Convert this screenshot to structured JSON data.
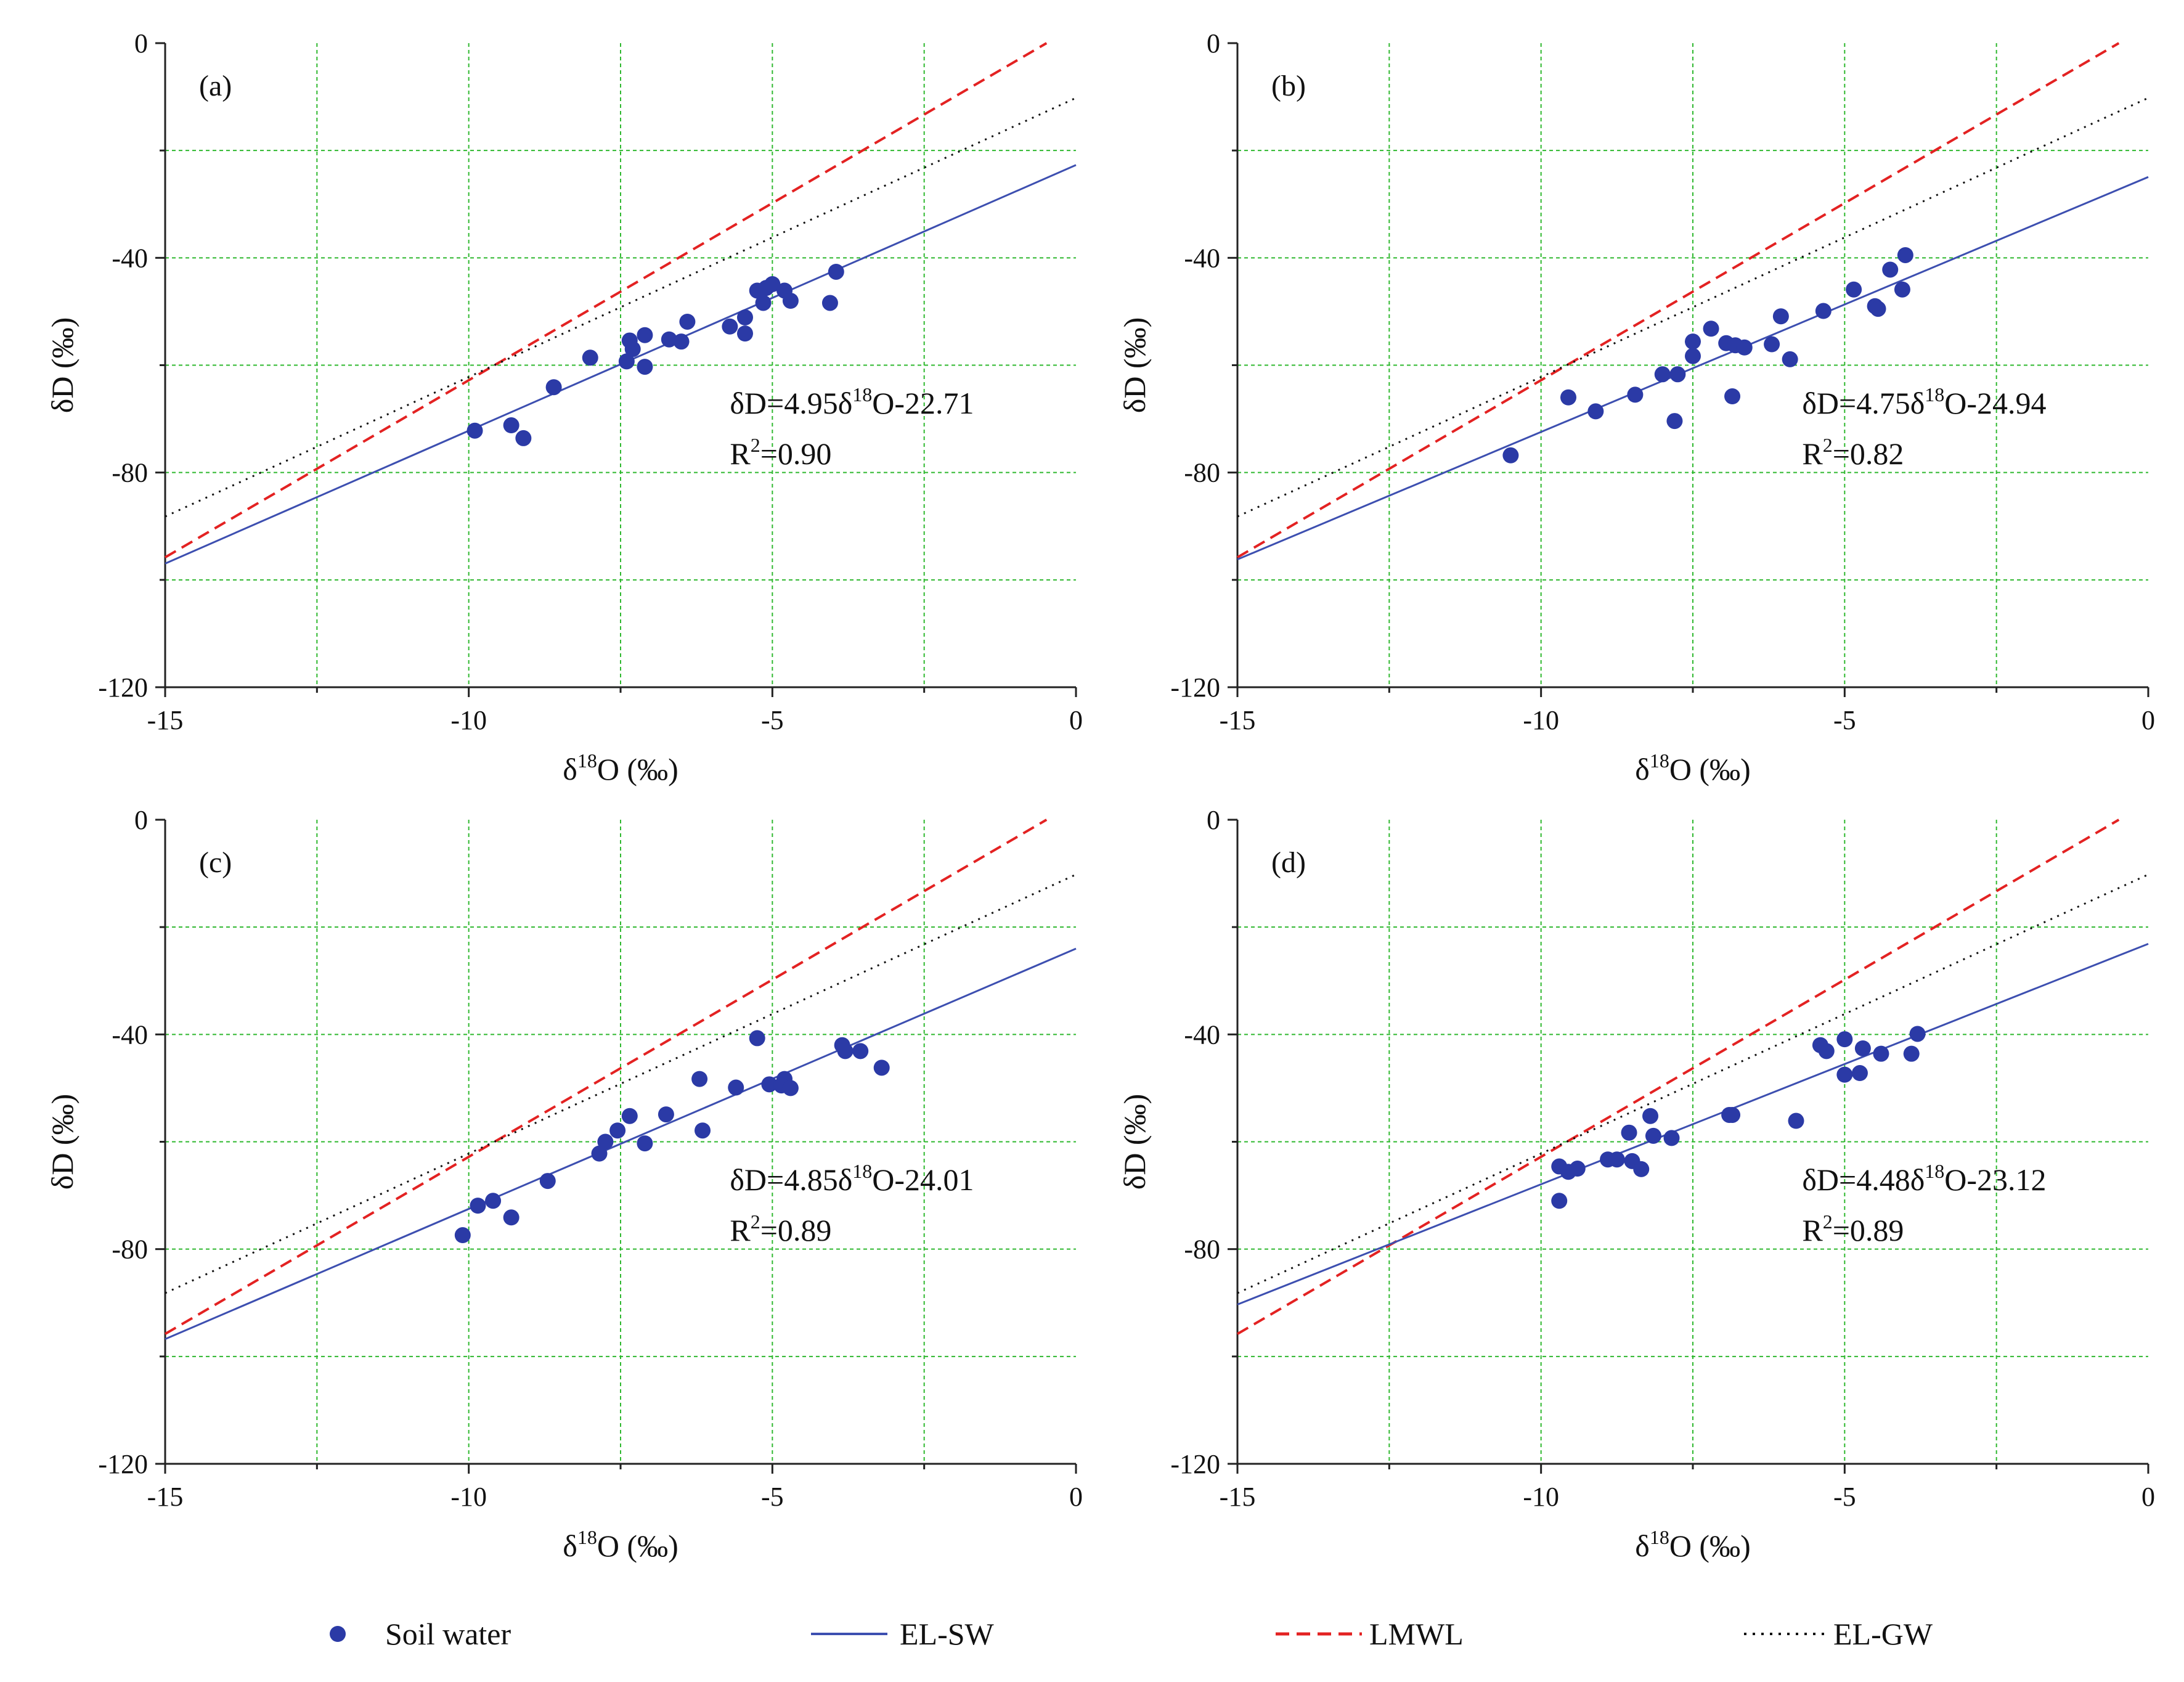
{
  "colors": {
    "points": "#2b3aa6",
    "el_sw": "#3d4fb0",
    "lmwl": "#e32222",
    "el_gw": "#111111",
    "grid": "#2fb82f",
    "axis": "#222222"
  },
  "legend": {
    "soil_water": "Soil water",
    "el_sw": "EL-SW",
    "lmwl": "LMWL",
    "el_gw": "EL-GW"
  },
  "chart_data": [
    {
      "type": "scatter",
      "panel": "(a)",
      "xlabel_main": "δ",
      "xlabel_sup": "18",
      "xlabel_rest": "O (‰)",
      "ylabel": "δD (‰)",
      "xlim": [
        -15,
        0
      ],
      "ylim": [
        -120,
        0
      ],
      "xticks": [
        "-15",
        "-10",
        "-5",
        "0"
      ],
      "yticks": [
        "0",
        "-40",
        "-80",
        "-120"
      ],
      "grid": true,
      "eq_line1_a": "δD=4.95δ",
      "eq_line1_sup": "18",
      "eq_line1_b": "O-22.71",
      "eq_line2_a": "R",
      "eq_line2_sup": "2",
      "eq_line2_b": "=0.90",
      "lines": {
        "el_sw": {
          "slope": 4.95,
          "intercept": -22.71
        },
        "lmwl": {
          "slope": 6.6,
          "intercept": 3.2
        },
        "el_gw": {
          "slope": 5.2,
          "intercept": -10.2
        }
      },
      "points": [
        [
          -9.9,
          -72.2
        ],
        [
          -9.3,
          -71.2
        ],
        [
          -9.1,
          -73.6
        ],
        [
          -8.6,
          -64.1
        ],
        [
          -8.0,
          -58.6
        ],
        [
          -7.4,
          -59.3
        ],
        [
          -7.1,
          -60.3
        ],
        [
          -7.3,
          -57.0
        ],
        [
          -7.35,
          -55.4
        ],
        [
          -7.1,
          -54.4
        ],
        [
          -6.7,
          -55.2
        ],
        [
          -6.5,
          -55.6
        ],
        [
          -6.4,
          -51.9
        ],
        [
          -5.7,
          -52.8
        ],
        [
          -5.45,
          -54.1
        ],
        [
          -5.45,
          -51.1
        ],
        [
          -5.25,
          -46.1
        ],
        [
          -5.1,
          -45.6
        ],
        [
          -5.15,
          -48.4
        ],
        [
          -5.0,
          -44.9
        ],
        [
          -4.8,
          -46.1
        ],
        [
          -4.7,
          -48.0
        ],
        [
          -4.05,
          -48.4
        ],
        [
          -3.95,
          -42.6
        ]
      ]
    },
    {
      "type": "scatter",
      "panel": "(b)",
      "xlabel_main": "δ",
      "xlabel_sup": "18",
      "xlabel_rest": "O (‰)",
      "ylabel": "δD (‰)",
      "xlim": [
        -15,
        0
      ],
      "ylim": [
        -120,
        0
      ],
      "xticks": [
        "-15",
        "-10",
        "-5",
        "0"
      ],
      "yticks": [
        "0",
        "-40",
        "-80",
        "-120"
      ],
      "grid": true,
      "eq_line1_a": "δD=4.75δ",
      "eq_line1_sup": "18",
      "eq_line1_b": "O-24.94",
      "eq_line2_a": "R",
      "eq_line2_sup": "2",
      "eq_line2_b": "=0.82",
      "lines": {
        "el_sw": {
          "slope": 4.75,
          "intercept": -24.94
        },
        "lmwl": {
          "slope": 6.6,
          "intercept": 3.2
        },
        "el_gw": {
          "slope": 5.2,
          "intercept": -10.2
        }
      },
      "points": [
        [
          -10.5,
          -76.8
        ],
        [
          -9.55,
          -66.0
        ],
        [
          -9.1,
          -68.6
        ],
        [
          -8.45,
          -65.5
        ],
        [
          -8.0,
          -61.7
        ],
        [
          -7.75,
          -61.7
        ],
        [
          -7.8,
          -70.4
        ],
        [
          -7.5,
          -58.3
        ],
        [
          -7.5,
          -55.6
        ],
        [
          -7.2,
          -53.2
        ],
        [
          -6.95,
          -55.9
        ],
        [
          -6.85,
          -65.8
        ],
        [
          -6.8,
          -56.3
        ],
        [
          -6.65,
          -56.7
        ],
        [
          -6.2,
          -56.1
        ],
        [
          -6.05,
          -50.9
        ],
        [
          -5.9,
          -58.9
        ],
        [
          -5.35,
          -49.9
        ],
        [
          -4.85,
          -45.9
        ],
        [
          -4.5,
          -49.0
        ],
        [
          -4.45,
          -49.5
        ],
        [
          -4.25,
          -42.2
        ],
        [
          -4.05,
          -45.9
        ],
        [
          -4.0,
          -39.5
        ]
      ]
    },
    {
      "type": "scatter",
      "panel": "(c)",
      "xlabel_main": "δ",
      "xlabel_sup": "18",
      "xlabel_rest": "O (‰)",
      "ylabel": "δD (‰)",
      "xlim": [
        -15,
        0
      ],
      "ylim": [
        -120,
        0
      ],
      "xticks": [
        "-15",
        "-10",
        "-5",
        "0"
      ],
      "yticks": [
        "0",
        "-40",
        "-80",
        "-120"
      ],
      "grid": true,
      "eq_line1_a": "δD=4.85δ",
      "eq_line1_sup": "18",
      "eq_line1_b": "O-24.01",
      "eq_line2_a": "R",
      "eq_line2_sup": "2",
      "eq_line2_b": "=0.89",
      "lines": {
        "el_sw": {
          "slope": 4.85,
          "intercept": -24.01
        },
        "lmwl": {
          "slope": 6.6,
          "intercept": 3.2
        },
        "el_gw": {
          "slope": 5.2,
          "intercept": -10.2
        }
      },
      "points": [
        [
          -10.1,
          -77.4
        ],
        [
          -9.85,
          -71.9
        ],
        [
          -9.6,
          -71.0
        ],
        [
          -9.3,
          -74.1
        ],
        [
          -8.7,
          -67.3
        ],
        [
          -7.85,
          -62.2
        ],
        [
          -7.75,
          -60.0
        ],
        [
          -7.55,
          -57.9
        ],
        [
          -7.35,
          -55.2
        ],
        [
          -7.1,
          -60.3
        ],
        [
          -6.75,
          -54.9
        ],
        [
          -6.2,
          -48.3
        ],
        [
          -6.15,
          -57.9
        ],
        [
          -5.6,
          -49.9
        ],
        [
          -5.25,
          -40.7
        ],
        [
          -5.05,
          -49.3
        ],
        [
          -4.8,
          -48.3
        ],
        [
          -4.85,
          -49.5
        ],
        [
          -4.7,
          -50.0
        ],
        [
          -3.85,
          -42.0
        ],
        [
          -3.8,
          -43.1
        ],
        [
          -3.55,
          -43.1
        ],
        [
          -3.2,
          -46.2
        ]
      ]
    },
    {
      "type": "scatter",
      "panel": "(d)",
      "xlabel_main": "δ",
      "xlabel_sup": "18",
      "xlabel_rest": "O (‰)",
      "ylabel": "δD (‰)",
      "xlim": [
        -15,
        0
      ],
      "ylim": [
        -120,
        0
      ],
      "xticks": [
        "-15",
        "-10",
        "-5",
        "0"
      ],
      "yticks": [
        "0",
        "-40",
        "-80",
        "-120"
      ],
      "grid": true,
      "eq_line1_a": "δD=4.48δ",
      "eq_line1_sup": "18",
      "eq_line1_b": "O-23.12",
      "eq_line2_a": "R",
      "eq_line2_sup": "2",
      "eq_line2_b": "=0.89",
      "lines": {
        "el_sw": {
          "slope": 4.48,
          "intercept": -23.12
        },
        "lmwl": {
          "slope": 6.6,
          "intercept": 3.2
        },
        "el_gw": {
          "slope": 5.2,
          "intercept": -10.2
        }
      },
      "points": [
        [
          -9.7,
          -71.0
        ],
        [
          -9.7,
          -64.6
        ],
        [
          -9.55,
          -65.6
        ],
        [
          -9.4,
          -65.0
        ],
        [
          -8.9,
          -63.3
        ],
        [
          -8.75,
          -63.3
        ],
        [
          -8.55,
          -58.3
        ],
        [
          -8.5,
          -63.6
        ],
        [
          -8.35,
          -65.1
        ],
        [
          -8.2,
          -55.2
        ],
        [
          -8.15,
          -58.9
        ],
        [
          -7.85,
          -59.3
        ],
        [
          -6.9,
          -55.0
        ],
        [
          -6.85,
          -55.0
        ],
        [
          -5.8,
          -56.1
        ],
        [
          -5.4,
          -42.0
        ],
        [
          -5.3,
          -43.1
        ],
        [
          -5.0,
          -40.9
        ],
        [
          -5.0,
          -47.5
        ],
        [
          -4.75,
          -47.2
        ],
        [
          -4.7,
          -42.6
        ],
        [
          -4.4,
          -43.6
        ],
        [
          -3.9,
          -43.6
        ],
        [
          -3.8,
          -39.9
        ]
      ]
    }
  ]
}
